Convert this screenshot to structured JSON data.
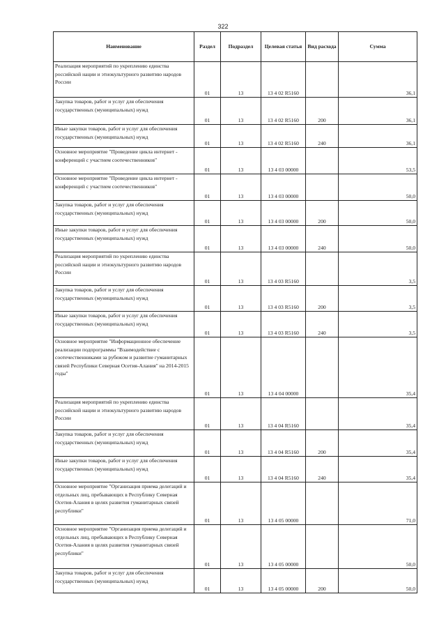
{
  "page_number": "322",
  "headers": [
    "Наименование",
    "Раздел",
    "Подраздел",
    "Целевая статья",
    "Вид расхода",
    "Сумма"
  ],
  "rows": [
    {
      "name": "Реализация мероприятий по укреплению единства российской нации и этнокультурного развитию народов России",
      "razdel": "01",
      "podrazdel": "13",
      "statya": "13 4 02 R5160",
      "vid": "",
      "summa": "36,1"
    },
    {
      "name": "Закупка товаров, работ и услуг для обеспечения государственных (муниципальных) нужд",
      "razdel": "01",
      "podrazdel": "13",
      "statya": "13 4 02 R5160",
      "vid": "200",
      "summa": "36,1"
    },
    {
      "name": "Иные закупки товаров, работ и услуг для обеспечения государственных (муниципальных) нужд",
      "razdel": "01",
      "podrazdel": "13",
      "statya": "13 4 02 R5160",
      "vid": "240",
      "summa": "36,1"
    },
    {
      "name": "Основное мероприятие \"Проведение цикла интернет - конференций с участием соотечественников\"",
      "razdel": "01",
      "podrazdel": "13",
      "statya": "13 4 03 00000",
      "vid": "",
      "summa": "53,5"
    },
    {
      "name": "Основное мероприятие \"Проведение цикла интернет - конференций с участием соотечественников\"",
      "razdel": "01",
      "podrazdel": "13",
      "statya": "13 4 03 00000",
      "vid": "",
      "summa": "50,0"
    },
    {
      "name": "Закупка товаров, работ и услуг для обеспечения государственных (муниципальных) нужд",
      "razdel": "01",
      "podrazdel": "13",
      "statya": "13 4 03 00000",
      "vid": "200",
      "summa": "50,0"
    },
    {
      "name": "Иные закупки товаров, работ и услуг для обеспечения государственных (муниципальных) нужд",
      "razdel": "01",
      "podrazdel": "13",
      "statya": "13 4 03 00000",
      "vid": "240",
      "summa": "50,0"
    },
    {
      "name": "Реализация мероприятий по укреплению единства российской нации и этнокультурного развитию народов России",
      "razdel": "01",
      "podrazdel": "13",
      "statya": "13 4 03 R5160",
      "vid": "",
      "summa": "3,5"
    },
    {
      "name": "Закупка товаров, работ и услуг для обеспечения государственных (муниципальных) нужд",
      "razdel": "01",
      "podrazdel": "13",
      "statya": "13 4 03 R5160",
      "vid": "200",
      "summa": "3,5"
    },
    {
      "name": "Иные закупки товаров, работ и услуг для обеспечения государственных (муниципальных) нужд",
      "razdel": "01",
      "podrazdel": "13",
      "statya": "13 4 03 R5160",
      "vid": "240",
      "summa": "3,5"
    },
    {
      "name": "Основное мероприятие \"Информационное обеспечение реализации подпрограммы \"Взаимодействие с соотечественниками за рубежом и развитие гуманитарных связей Республики Северная Осетия-Алания\" на 2014-2015 годы\"",
      "razdel": "01",
      "podrazdel": "13",
      "statya": "13 4 04 00000",
      "vid": "",
      "summa": "35,4"
    },
    {
      "name": "Реализация мероприятий по укреплению единства российской нации и этнокультурного развитию народов России",
      "razdel": "01",
      "podrazdel": "13",
      "statya": "13 4 04 R5160",
      "vid": "",
      "summa": "35,4"
    },
    {
      "name": "Закупка товаров, работ и услуг для обеспечения государственных (муниципальных) нужд",
      "razdel": "01",
      "podrazdel": "13",
      "statya": "13 4 04 R5160",
      "vid": "200",
      "summa": "35,4"
    },
    {
      "name": "Иные закупки товаров, работ и услуг для обеспечения государственных (муниципальных) нужд",
      "razdel": "01",
      "podrazdel": "13",
      "statya": "13 4 04 R5160",
      "vid": "240",
      "summa": "35,4"
    },
    {
      "name": "Основное мероприятие \"Организация приема делегаций и отдельных лиц, пребывающих в Республику Северная Осетия-Алания в целях развития гуманитарных связей республики\"",
      "razdel": "01",
      "podrazdel": "13",
      "statya": "13 4 05 00000",
      "vid": "",
      "summa": "71,0"
    },
    {
      "name": "Основное мероприятие \"Организация приема делегаций и отдельных лиц, пребывающих в Республику Северная Осетия-Алания в целях развития гуманитарных связей республики\"",
      "razdel": "01",
      "podrazdel": "13",
      "statya": "13 4 05 00000",
      "vid": "",
      "summa": "50,0"
    },
    {
      "name": "Закупка товаров, работ и услуг для обеспечения государственных (муниципальных) нужд",
      "razdel": "01",
      "podrazdel": "13",
      "statya": "13 4 05 00000",
      "vid": "200",
      "summa": "50,0"
    }
  ]
}
